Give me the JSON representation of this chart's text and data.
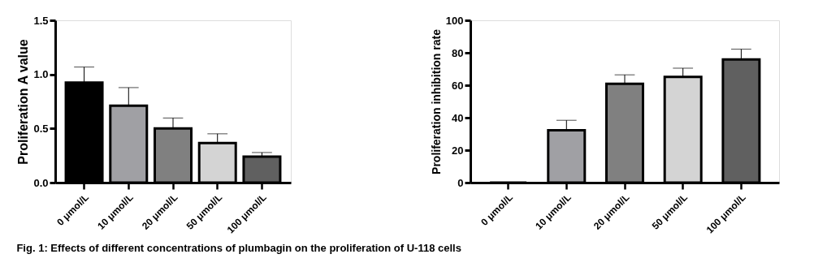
{
  "chart_data": [
    {
      "type": "bar",
      "ylabel": "Proliferation A value",
      "categories": [
        "0 μmol/L",
        "10  μmol/L",
        "20  μmol/L",
        "50  μmol/L",
        "100  μmol/L"
      ],
      "values": [
        0.925,
        0.71,
        0.5,
        0.366,
        0.24
      ],
      "colors": [
        "#000000",
        "#a0a0a4",
        "#808080",
        "#d4d4d4",
        "#606060"
      ],
      "errors": [
        [
          0.925,
          1.068
        ],
        [
          0.71,
          0.878
        ],
        [
          0.5,
          0.597
        ],
        [
          0.366,
          0.451
        ],
        [
          0.24,
          0.278
        ]
      ],
      "ylim": [
        0,
        1.5
      ],
      "yticks": [
        {
          "value": 0,
          "label": "0.0"
        },
        0.5,
        {
          "value": 1,
          "label": "1.0"
        },
        1.5
      ],
      "grid": false,
      "annotations": [
        "Fig. 1: Effects of different concentrations of plumbagin on the proliferation of U-118 cells"
      ]
    },
    {
      "type": "bar",
      "ylabel": "Proliferation inhibition rate",
      "categories": [
        "0 μmol/L",
        "10 μmol/L",
        "20 μmol/L",
        "50 μmol/L",
        "100 μmol/L"
      ],
      "values": [
        0,
        32.3,
        60.9,
        65.1,
        75.9
      ],
      "colors": [
        "#000000",
        "#a0a0a4",
        "#808080",
        "#d4d4d4",
        "#606060"
      ],
      "errors": [
        null,
        [
          32.3,
          38.4
        ],
        [
          60.9,
          66.4
        ],
        [
          65.1,
          70.5
        ],
        [
          75.9,
          82.2
        ]
      ],
      "ylim": [
        0,
        100
      ],
      "yticks": [
        0,
        20,
        40,
        60,
        80,
        100
      ],
      "grid": false
    }
  ]
}
